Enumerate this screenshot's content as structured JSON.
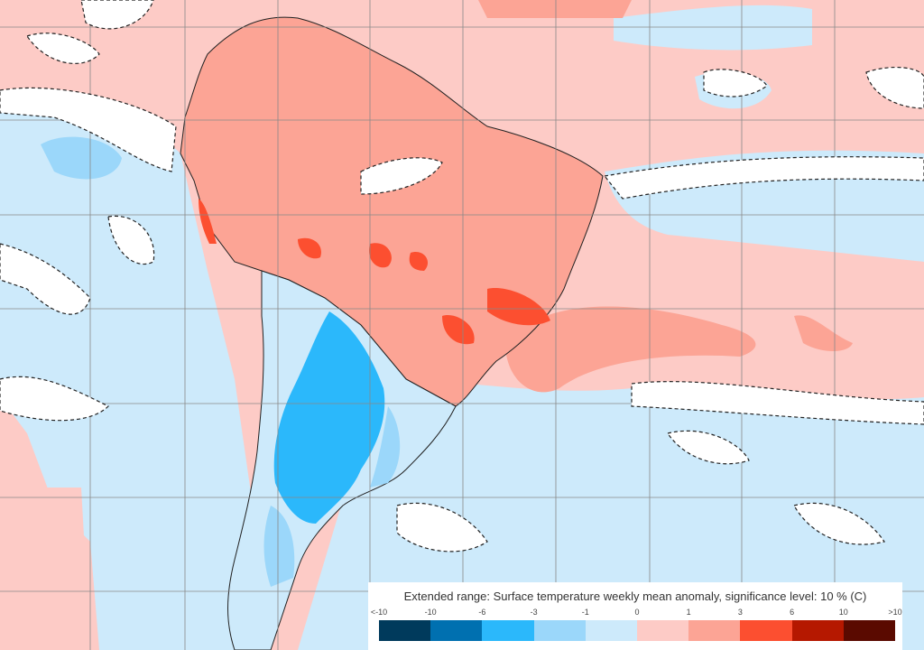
{
  "legend": {
    "title": "Extended range: Surface temperature weekly mean anomaly, significance level: 10 % (C)",
    "ticks": [
      "<-10",
      "-10",
      "-6",
      "-3",
      "-1",
      "0",
      "1",
      "3",
      "6",
      "10",
      ">10"
    ],
    "colors": [
      "#003a5c",
      "#0070b0",
      "#2bb8fb",
      "#9bd7fa",
      "#cdeafb",
      "#fdcbc6",
      "#fca495",
      "#fc4f30",
      "#b51800",
      "#5a0a00"
    ]
  }
}
